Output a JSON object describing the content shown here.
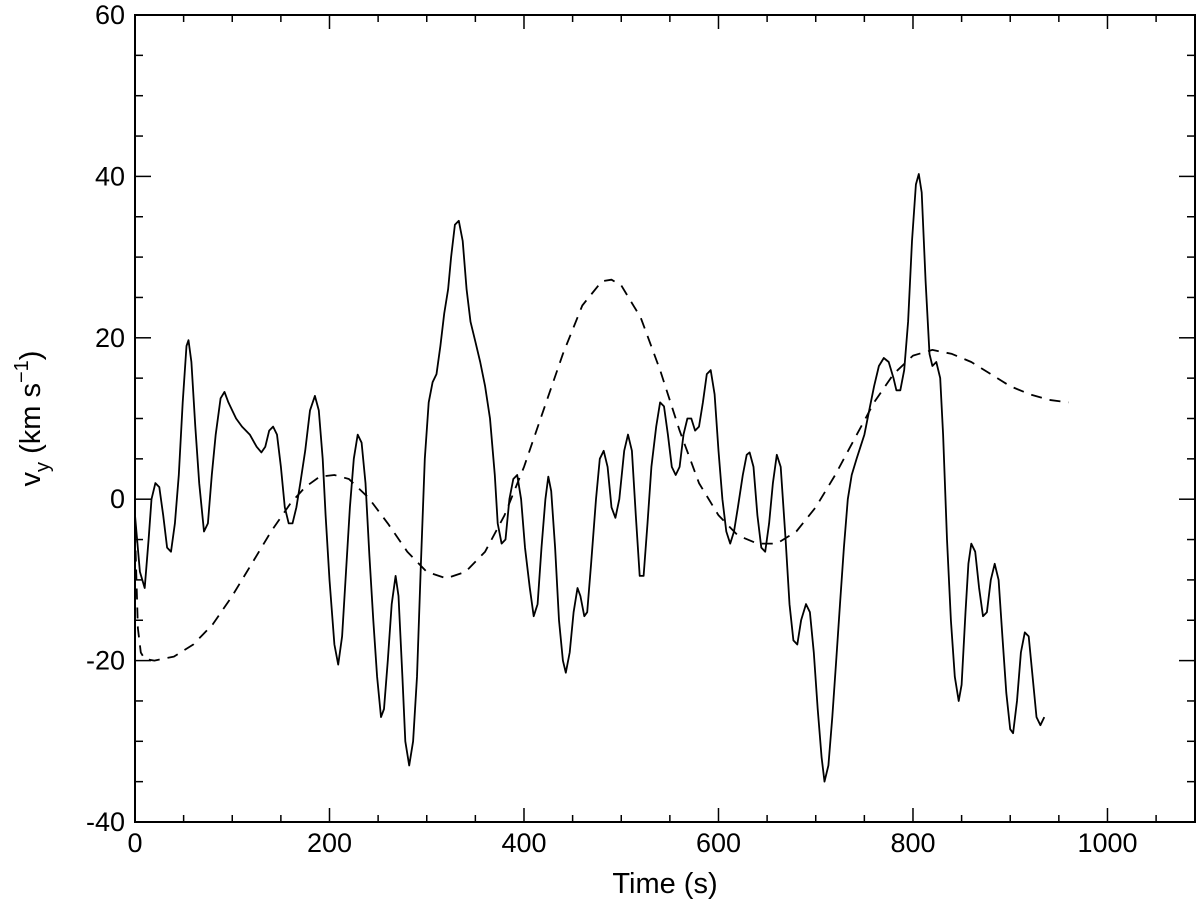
{
  "chart_data": {
    "type": "line",
    "xlabel": "Time (s)",
    "ylabel": {
      "base": "v",
      "sub": "y",
      "units_pre": " (km s",
      "sup": "−1",
      "units_post": ")"
    },
    "xlim": [
      0,
      1090
    ],
    "ylim": [
      -40,
      60
    ],
    "x_ticks": [
      0,
      200,
      400,
      600,
      800,
      1000
    ],
    "x_tick_labels": [
      "0",
      "200",
      "400",
      "600",
      "800",
      "1000"
    ],
    "y_ticks": [
      -40,
      -20,
      0,
      20,
      40,
      60
    ],
    "y_tick_labels": [
      "-40",
      "-20",
      "0",
      "20",
      "40",
      "60"
    ],
    "x_minor_step": 50,
    "y_minor_step": 5,
    "grid": false,
    "legend": "none",
    "series": [
      {
        "style": "solid",
        "color": "#000000",
        "points": [
          [
            0,
            -2
          ],
          [
            5,
            -9
          ],
          [
            10,
            -11
          ],
          [
            14,
            -5
          ],
          [
            17,
            0
          ],
          [
            21,
            2
          ],
          [
            25,
            1.5
          ],
          [
            29,
            -2
          ],
          [
            33,
            -6
          ],
          [
            37,
            -6.5
          ],
          [
            41,
            -3
          ],
          [
            45,
            3
          ],
          [
            49,
            12
          ],
          [
            53,
            19
          ],
          [
            55,
            19.7
          ],
          [
            58,
            17
          ],
          [
            62,
            9
          ],
          [
            66,
            2
          ],
          [
            71,
            -4
          ],
          [
            75,
            -3
          ],
          [
            79,
            3
          ],
          [
            83,
            8
          ],
          [
            88,
            12.5
          ],
          [
            92,
            13.3
          ],
          [
            96,
            12
          ],
          [
            100,
            11
          ],
          [
            104,
            10
          ],
          [
            110,
            9
          ],
          [
            118,
            8
          ],
          [
            125,
            6.5
          ],
          [
            130,
            5.8
          ],
          [
            134,
            6.5
          ],
          [
            138,
            8.5
          ],
          [
            142,
            9
          ],
          [
            146,
            8
          ],
          [
            150,
            4
          ],
          [
            154,
            -1
          ],
          [
            158,
            -3
          ],
          [
            162,
            -3
          ],
          [
            166,
            -1
          ],
          [
            170,
            2
          ],
          [
            175,
            6
          ],
          [
            180,
            11
          ],
          [
            185,
            12.8
          ],
          [
            189,
            11
          ],
          [
            193,
            5
          ],
          [
            196,
            -2
          ],
          [
            200,
            -10
          ],
          [
            205,
            -18
          ],
          [
            209,
            -20.5
          ],
          [
            213,
            -17
          ],
          [
            217,
            -9
          ],
          [
            221,
            -1
          ],
          [
            225,
            5
          ],
          [
            229,
            8
          ],
          [
            233,
            7
          ],
          [
            237,
            2
          ],
          [
            241,
            -7
          ],
          [
            245,
            -15
          ],
          [
            249,
            -22
          ],
          [
            253,
            -27
          ],
          [
            256,
            -26
          ],
          [
            260,
            -20
          ],
          [
            264,
            -13
          ],
          [
            268,
            -9.5
          ],
          [
            271,
            -12
          ],
          [
            275,
            -22
          ],
          [
            278,
            -30
          ],
          [
            282,
            -33
          ],
          [
            286,
            -30
          ],
          [
            290,
            -22
          ],
          [
            294,
            -8
          ],
          [
            298,
            5
          ],
          [
            302,
            12
          ],
          [
            306,
            14.5
          ],
          [
            310,
            15.5
          ],
          [
            314,
            19
          ],
          [
            318,
            23
          ],
          [
            322,
            26
          ],
          [
            325,
            30
          ],
          [
            329,
            34
          ],
          [
            333,
            34.5
          ],
          [
            337,
            32
          ],
          [
            341,
            26
          ],
          [
            345,
            22
          ],
          [
            350,
            19.5
          ],
          [
            355,
            17
          ],
          [
            360,
            14
          ],
          [
            365,
            10
          ],
          [
            370,
            3
          ],
          [
            373,
            -3
          ],
          [
            377,
            -5.5
          ],
          [
            381,
            -5
          ],
          [
            385,
            0
          ],
          [
            389,
            2.5
          ],
          [
            393,
            3
          ],
          [
            397,
            0
          ],
          [
            401,
            -6
          ],
          [
            406,
            -11
          ],
          [
            410,
            -14.5
          ],
          [
            414,
            -13
          ],
          [
            418,
            -6
          ],
          [
            422,
            0
          ],
          [
            425,
            2.8
          ],
          [
            428,
            1
          ],
          [
            432,
            -6
          ],
          [
            436,
            -15
          ],
          [
            440,
            -20
          ],
          [
            443,
            -21.5
          ],
          [
            447,
            -19
          ],
          [
            451,
            -14
          ],
          [
            455,
            -11
          ],
          [
            458,
            -12
          ],
          [
            462,
            -14.5
          ],
          [
            465,
            -14
          ],
          [
            469,
            -8
          ],
          [
            474,
            0
          ],
          [
            478,
            5
          ],
          [
            482,
            6
          ],
          [
            486,
            4
          ],
          [
            490,
            -1
          ],
          [
            494,
            -2.3
          ],
          [
            498,
            0
          ],
          [
            503,
            6
          ],
          [
            507,
            8
          ],
          [
            511,
            6
          ],
          [
            515,
            -2
          ],
          [
            519,
            -9.5
          ],
          [
            523,
            -9.5
          ],
          [
            527,
            -3
          ],
          [
            531,
            4
          ],
          [
            536,
            9
          ],
          [
            540,
            12
          ],
          [
            544,
            11.5
          ],
          [
            548,
            8
          ],
          [
            552,
            4
          ],
          [
            556,
            3
          ],
          [
            560,
            4
          ],
          [
            564,
            8
          ],
          [
            568,
            10
          ],
          [
            572,
            10
          ],
          [
            576,
            8.5
          ],
          [
            580,
            9
          ],
          [
            584,
            12
          ],
          [
            588,
            15.5
          ],
          [
            592,
            16
          ],
          [
            596,
            13
          ],
          [
            600,
            6
          ],
          [
            604,
            0
          ],
          [
            608,
            -4
          ],
          [
            612,
            -5.5
          ],
          [
            616,
            -4
          ],
          [
            620,
            -1
          ],
          [
            625,
            3
          ],
          [
            629,
            5.5
          ],
          [
            632,
            5.8
          ],
          [
            636,
            4
          ],
          [
            640,
            -2
          ],
          [
            644,
            -6
          ],
          [
            648,
            -6.5
          ],
          [
            652,
            -3
          ],
          [
            656,
            2
          ],
          [
            660,
            5.5
          ],
          [
            664,
            4
          ],
          [
            669,
            -5
          ],
          [
            673,
            -13
          ],
          [
            677,
            -17.5
          ],
          [
            681,
            -18
          ],
          [
            685,
            -15
          ],
          [
            690,
            -13
          ],
          [
            694,
            -14
          ],
          [
            698,
            -19
          ],
          [
            702,
            -26
          ],
          [
            706,
            -32
          ],
          [
            709,
            -35
          ],
          [
            713,
            -33
          ],
          [
            717,
            -27
          ],
          [
            721,
            -20
          ],
          [
            725,
            -13
          ],
          [
            729,
            -6
          ],
          [
            733,
            0
          ],
          [
            737,
            3
          ],
          [
            742,
            5
          ],
          [
            746,
            6.5
          ],
          [
            750,
            8
          ],
          [
            755,
            11
          ],
          [
            760,
            14
          ],
          [
            765,
            16.5
          ],
          [
            770,
            17.5
          ],
          [
            775,
            17
          ],
          [
            780,
            15
          ],
          [
            783,
            13.5
          ],
          [
            787,
            13.5
          ],
          [
            791,
            16
          ],
          [
            795,
            22
          ],
          [
            799,
            32
          ],
          [
            803,
            39
          ],
          [
            806,
            40.3
          ],
          [
            809,
            38
          ],
          [
            813,
            27
          ],
          [
            817,
            18
          ],
          [
            820,
            16.5
          ],
          [
            824,
            17
          ],
          [
            828,
            15
          ],
          [
            831,
            8
          ],
          [
            835,
            -5
          ],
          [
            839,
            -15
          ],
          [
            843,
            -22
          ],
          [
            847,
            -25
          ],
          [
            850,
            -23
          ],
          [
            854,
            -14
          ],
          [
            857,
            -8
          ],
          [
            860,
            -5.5
          ],
          [
            864,
            -6.5
          ],
          [
            868,
            -11
          ],
          [
            872,
            -14.5
          ],
          [
            876,
            -14
          ],
          [
            880,
            -10
          ],
          [
            884,
            -8
          ],
          [
            888,
            -10
          ],
          [
            892,
            -17
          ],
          [
            896,
            -24
          ],
          [
            900,
            -28.5
          ],
          [
            903,
            -29
          ],
          [
            907,
            -25
          ],
          [
            911,
            -19
          ],
          [
            915,
            -16.5
          ],
          [
            919,
            -17
          ],
          [
            923,
            -22
          ],
          [
            927,
            -27
          ],
          [
            931,
            -28
          ],
          [
            935,
            -27
          ]
        ]
      },
      {
        "style": "dashed",
        "color": "#000000",
        "points": [
          [
            0,
            -4
          ],
          [
            3,
            -16
          ],
          [
            6,
            -19
          ],
          [
            10,
            -19.8
          ],
          [
            20,
            -20
          ],
          [
            40,
            -19.5
          ],
          [
            60,
            -18
          ],
          [
            80,
            -15.5
          ],
          [
            100,
            -12
          ],
          [
            120,
            -8
          ],
          [
            140,
            -4
          ],
          [
            160,
            -0.5
          ],
          [
            175,
            1.5
          ],
          [
            190,
            2.8
          ],
          [
            205,
            3
          ],
          [
            220,
            2.5
          ],
          [
            240,
            0.2
          ],
          [
            260,
            -3
          ],
          [
            280,
            -6.5
          ],
          [
            300,
            -9
          ],
          [
            320,
            -9.8
          ],
          [
            340,
            -9
          ],
          [
            360,
            -6.5
          ],
          [
            380,
            -2
          ],
          [
            400,
            4
          ],
          [
            420,
            11
          ],
          [
            440,
            18
          ],
          [
            460,
            24
          ],
          [
            480,
            27
          ],
          [
            490,
            27.2
          ],
          [
            500,
            26.5
          ],
          [
            520,
            22.5
          ],
          [
            540,
            16
          ],
          [
            560,
            8.5
          ],
          [
            580,
            2
          ],
          [
            600,
            -2
          ],
          [
            620,
            -4.5
          ],
          [
            640,
            -5.5
          ],
          [
            660,
            -5.5
          ],
          [
            680,
            -4
          ],
          [
            700,
            -1
          ],
          [
            720,
            3
          ],
          [
            740,
            7.5
          ],
          [
            760,
            12
          ],
          [
            780,
            15.5
          ],
          [
            800,
            17.8
          ],
          [
            820,
            18.5
          ],
          [
            840,
            18
          ],
          [
            860,
            17
          ],
          [
            880,
            15.5
          ],
          [
            900,
            14
          ],
          [
            920,
            13
          ],
          [
            940,
            12.3
          ],
          [
            960,
            12
          ]
        ]
      }
    ]
  }
}
